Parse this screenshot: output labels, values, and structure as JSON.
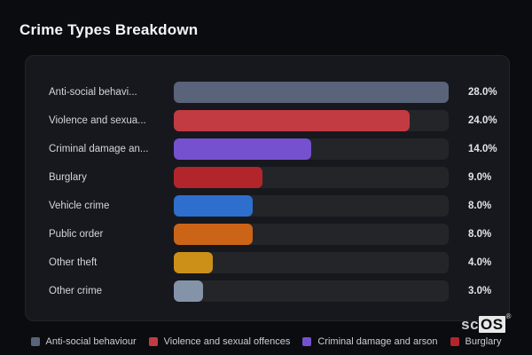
{
  "header": {
    "title": "Crime Types Breakdown"
  },
  "chart_data": {
    "type": "bar",
    "orientation": "horizontal",
    "title": "Crime Types Breakdown",
    "categories": [
      "Anti-social behaviour",
      "Violence and sexual offences",
      "Criminal damage and arson",
      "Burglary",
      "Vehicle crime",
      "Public order",
      "Other theft",
      "Other crime"
    ],
    "display_labels": [
      "Anti-social behavi...",
      "Violence and sexua...",
      "Criminal damage an...",
      "Burglary",
      "Vehicle crime",
      "Public order",
      "Other theft",
      "Other crime"
    ],
    "values": [
      28.0,
      24.0,
      14.0,
      9.0,
      8.0,
      8.0,
      4.0,
      3.0
    ],
    "value_labels": [
      "28.0%",
      "24.0%",
      "14.0%",
      "9.0%",
      "8.0%",
      "8.0%",
      "4.0%",
      "3.0%"
    ],
    "value_unit": "%",
    "bar_colors": [
      "#59637a",
      "#c23b42",
      "#7551cf",
      "#b2262b",
      "#2e6fce",
      "#cc6418",
      "#cc9018",
      "#8593a9"
    ],
    "xlim": [
      0,
      28
    ],
    "grid": false,
    "legend_position": "bottom"
  },
  "legend": {
    "items": [
      {
        "label": "Anti-social behaviour",
        "color": "#59637a"
      },
      {
        "label": "Violence and sexual offences",
        "color": "#c23b42"
      },
      {
        "label": "Criminal damage and arson",
        "color": "#7551cf"
      },
      {
        "label": "Burglary",
        "color": "#b2262b"
      }
    ]
  },
  "watermark": {
    "prefix": "sc",
    "suffix": "OS",
    "registered": "®"
  },
  "colors": {
    "page_background": "#0b0c0f",
    "card_background": "#17181d",
    "track_background": "#242529",
    "title_text": "#f5f6f8",
    "label_text": "#d2d5da",
    "value_text": "#e2e4e8",
    "legend_text": "#c9cdd4"
  }
}
